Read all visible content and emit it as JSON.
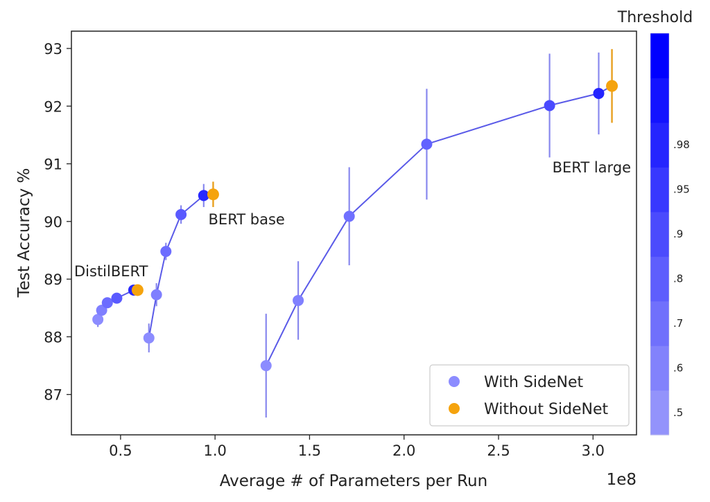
{
  "chart_data": {
    "type": "scatter",
    "xlabel": "Average # of Parameters per Run",
    "ylabel": "Test Accuracy %",
    "x_offset_label": "1e8",
    "xlim": [
      0.24,
      3.23
    ],
    "ylim": [
      86.3,
      93.3
    ],
    "x_ticks": [
      0.5,
      1.0,
      1.5,
      2.0,
      2.5,
      3.0
    ],
    "x_tick_labels": [
      "0.5",
      "1.0",
      "1.5",
      "2.0",
      "2.5",
      "3.0"
    ],
    "y_ticks": [
      87,
      88,
      89,
      90,
      91,
      92,
      93
    ],
    "y_tick_labels": [
      "87",
      "88",
      "89",
      "90",
      "91",
      "92",
      "93"
    ],
    "grid": false,
    "legend_position": "lower-right",
    "legend": [
      {
        "label": "With SideNet",
        "color": "#8c8cff"
      },
      {
        "label": "Without SideNet",
        "color": "#f5a30d"
      }
    ],
    "colorbar": {
      "title": "Threshold",
      "bands": [
        "#9393fb",
        "#8282fc",
        "#7070fc",
        "#5e5efd",
        "#4b4bfd",
        "#3838fe",
        "#2525fe",
        "#1313ff",
        "#0000ff"
      ],
      "tick_labels": [
        ".5",
        ".6",
        ".7",
        ".8",
        ".9",
        ".95",
        ".98"
      ]
    },
    "line_color": "#5a5ae8",
    "error_color": "#8888ee",
    "series": [
      {
        "name": "DistilBERT",
        "with_sidenet": [
          {
            "x": 0.38,
            "y": 88.3,
            "err": 0.13,
            "color": "#8c8cff"
          },
          {
            "x": 0.4,
            "y": 88.46,
            "err": 0.09,
            "color": "#7f7fff"
          },
          {
            "x": 0.43,
            "y": 88.59,
            "err": 0.07,
            "color": "#6c6cff"
          },
          {
            "x": 0.48,
            "y": 88.67,
            "err": 0.06,
            "color": "#5a5aff"
          },
          {
            "x": 0.57,
            "y": 88.81,
            "err": 0.04,
            "color": "#2828ff"
          }
        ],
        "without_sidenet": {
          "x": 0.59,
          "y": 88.81,
          "err": 0.03,
          "color": "#f5a30d"
        }
      },
      {
        "name": "BERT base",
        "with_sidenet": [
          {
            "x": 0.65,
            "y": 87.98,
            "err": 0.25,
            "color": "#8c8cff"
          },
          {
            "x": 0.69,
            "y": 88.73,
            "err": 0.2,
            "color": "#7f7fff"
          },
          {
            "x": 0.74,
            "y": 89.48,
            "err": 0.15,
            "color": "#6c6cff"
          },
          {
            "x": 0.82,
            "y": 90.12,
            "err": 0.16,
            "color": "#5a5aff"
          },
          {
            "x": 0.94,
            "y": 90.45,
            "err": 0.2,
            "color": "#2828ff"
          }
        ],
        "without_sidenet": {
          "x": 0.99,
          "y": 90.47,
          "err": 0.22,
          "color": "#f5a30d"
        }
      },
      {
        "name": "BERT large",
        "with_sidenet": [
          {
            "x": 1.27,
            "y": 87.5,
            "err": 0.9,
            "color": "#8c8cff"
          },
          {
            "x": 1.44,
            "y": 88.63,
            "err": 0.68,
            "color": "#8080ff"
          },
          {
            "x": 1.71,
            "y": 90.09,
            "err": 0.85,
            "color": "#7070ff"
          },
          {
            "x": 2.12,
            "y": 91.34,
            "err": 0.96,
            "color": "#6262ff"
          },
          {
            "x": 2.77,
            "y": 92.01,
            "err": 0.9,
            "color": "#4a4aff"
          },
          {
            "x": 3.03,
            "y": 92.22,
            "err": 0.71,
            "color": "#2424ff"
          }
        ],
        "without_sidenet": {
          "x": 3.1,
          "y": 92.35,
          "err": 0.64,
          "color": "#f5a30d"
        }
      }
    ],
    "annotations": [
      {
        "text": "DistilBERT",
        "x": 0.24,
        "y": 89.05
      },
      {
        "text": "BERT base",
        "x": 0.95,
        "y": 89.95
      },
      {
        "text": "BERT large",
        "x": 2.77,
        "y": 90.85
      }
    ]
  }
}
